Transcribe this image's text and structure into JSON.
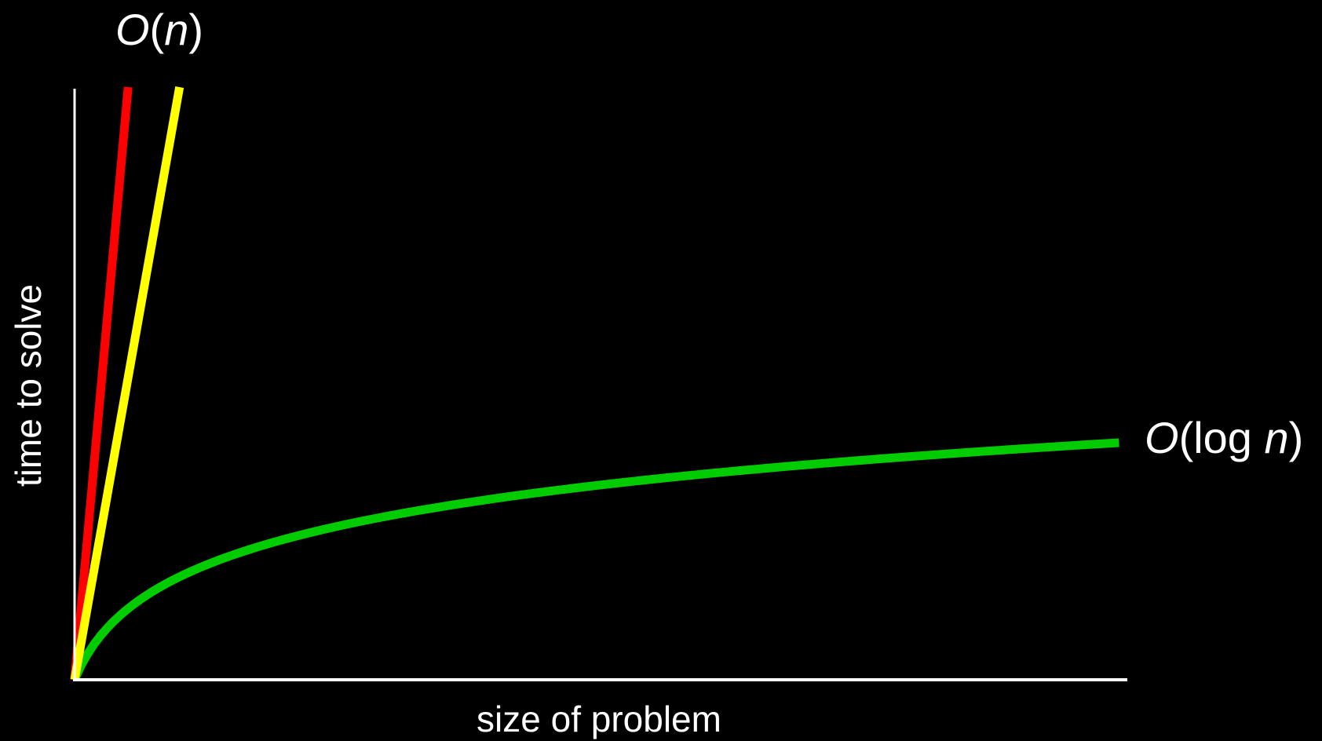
{
  "chart_data": {
    "type": "line",
    "title": "",
    "xlabel": "size of problem",
    "ylabel": "time to solve",
    "grid": false,
    "legend": "none",
    "series": [
      {
        "function": "steep linear",
        "color": "#ff0000",
        "label": "",
        "end_point": {
          "x": 0.051,
          "y": 1.0
        }
      },
      {
        "function": "linear",
        "color": "#ffff00",
        "label_parts": [
          {
            "text": "O",
            "italic": true
          },
          {
            "text": "(",
            "italic": false
          },
          {
            "text": "n",
            "italic": true
          },
          {
            "text": ")",
            "italic": false
          }
        ],
        "end_point": {
          "x": 0.1,
          "y": 1.0
        }
      },
      {
        "function": "logarithmic",
        "color": "#00cc00",
        "label_parts": [
          {
            "text": "O",
            "italic": true
          },
          {
            "text": "(log ",
            "italic": false
          },
          {
            "text": "n",
            "italic": true
          },
          {
            "text": ")",
            "italic": false
          }
        ],
        "end_point": {
          "x": 0.995,
          "y": 0.4
        }
      }
    ]
  }
}
